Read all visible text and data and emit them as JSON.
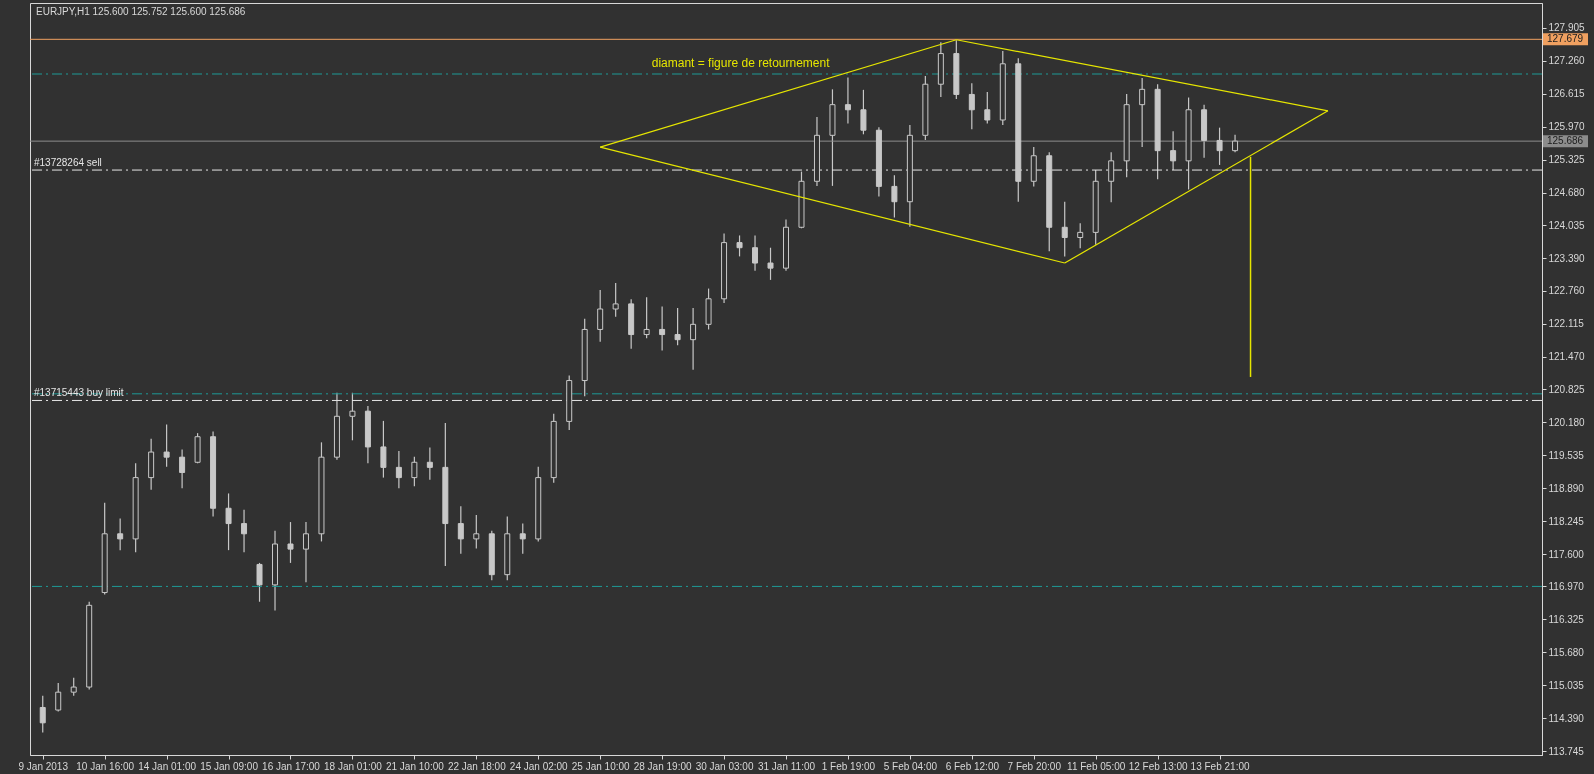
{
  "chart_data": {
    "type": "candlestick",
    "title": "EURJPY,H1  125.600 125.752 125.600 125.686",
    "color": "#c8c8c8",
    "categories": [
      "9 Jan 2013",
      null,
      null,
      null,
      "10 Jan 16:00",
      null,
      null,
      null,
      "14 Jan 01:00",
      null,
      null,
      null,
      "15 Jan 09:00",
      null,
      null,
      null,
      "16 Jan 17:00",
      null,
      null,
      null,
      "18 Jan 01:00",
      null,
      null,
      null,
      "21 Jan 10:00",
      null,
      null,
      null,
      "22 Jan 18:00",
      null,
      null,
      null,
      "24 Jan 02:00",
      null,
      null,
      null,
      "25 Jan 10:00",
      null,
      null,
      null,
      "28 Jan 19:00",
      null,
      null,
      null,
      "30 Jan 03:00",
      null,
      null,
      null,
      "31 Jan 11:00",
      null,
      null,
      null,
      "1 Feb 19:00",
      null,
      null,
      null,
      "5 Feb 04:00",
      null,
      null,
      null,
      "6 Feb 12:00",
      null,
      null,
      null,
      "7 Feb 20:00",
      null,
      null,
      null,
      "11 Feb 05:00",
      null,
      null,
      null,
      "12 Feb 13:00",
      null,
      null,
      null,
      "13 Feb 21:00",
      null,
      null,
      null,
      null,
      null,
      null,
      null,
      null,
      null,
      null,
      null,
      null,
      null,
      null,
      null,
      null,
      null,
      null,
      null,
      null
    ],
    "ohlc": [
      [
        114.6,
        114.83,
        114.11,
        114.3
      ],
      [
        114.55,
        115.08,
        114.52,
        114.9
      ],
      [
        114.9,
        115.18,
        114.83,
        115.0
      ],
      [
        115.0,
        116.67,
        114.95,
        116.6
      ],
      [
        116.85,
        118.61,
        116.81,
        118.0
      ],
      [
        118.0,
        118.3,
        117.68,
        117.9
      ],
      [
        117.9,
        119.38,
        117.64,
        119.1
      ],
      [
        119.1,
        119.86,
        118.86,
        119.6
      ],
      [
        119.6,
        120.14,
        119.31,
        119.5
      ],
      [
        119.5,
        119.65,
        118.89,
        119.2
      ],
      [
        119.4,
        119.97,
        119.38,
        119.9
      ],
      [
        119.9,
        120.0,
        118.34,
        118.5
      ],
      [
        118.5,
        118.79,
        117.68,
        118.2
      ],
      [
        118.2,
        118.47,
        117.64,
        118.0
      ],
      [
        117.4,
        117.43,
        116.67,
        117.0
      ],
      [
        117.0,
        118.06,
        116.5,
        117.8
      ],
      [
        117.8,
        118.23,
        117.43,
        117.7
      ],
      [
        117.7,
        118.23,
        117.05,
        118.0
      ],
      [
        118.0,
        119.79,
        117.85,
        119.5
      ],
      [
        119.5,
        120.76,
        119.45,
        120.3
      ],
      [
        120.3,
        120.76,
        119.83,
        120.4
      ],
      [
        120.4,
        120.5,
        119.38,
        119.7
      ],
      [
        119.7,
        120.21,
        119.1,
        119.3
      ],
      [
        119.3,
        119.62,
        118.89,
        119.1
      ],
      [
        119.1,
        119.51,
        118.93,
        119.4
      ],
      [
        119.4,
        119.69,
        119.06,
        119.3
      ],
      [
        119.3,
        120.17,
        117.37,
        118.2
      ],
      [
        118.2,
        118.54,
        117.61,
        117.9
      ],
      [
        117.9,
        118.37,
        117.71,
        118.0
      ],
      [
        118.0,
        118.06,
        117.09,
        117.2
      ],
      [
        117.2,
        118.34,
        117.09,
        118.0
      ],
      [
        118.0,
        118.2,
        117.61,
        117.9
      ],
      [
        117.9,
        119.31,
        117.85,
        119.1
      ],
      [
        119.1,
        120.35,
        119.0,
        120.2
      ],
      [
        120.2,
        121.1,
        120.03,
        121.0
      ],
      [
        121.0,
        122.21,
        120.69,
        122.0
      ],
      [
        122.0,
        122.77,
        121.76,
        122.4
      ],
      [
        122.4,
        122.91,
        122.25,
        122.5
      ],
      [
        122.5,
        122.59,
        121.62,
        121.9
      ],
      [
        121.9,
        122.63,
        121.83,
        122.0
      ],
      [
        122.0,
        122.45,
        121.59,
        121.9
      ],
      [
        121.9,
        122.42,
        121.69,
        121.8
      ],
      [
        121.8,
        122.42,
        121.21,
        122.1
      ],
      [
        122.1,
        122.8,
        122.0,
        122.6
      ],
      [
        122.6,
        123.88,
        122.52,
        123.7
      ],
      [
        123.7,
        123.84,
        123.43,
        123.6
      ],
      [
        123.6,
        123.84,
        123.15,
        123.3
      ],
      [
        123.3,
        123.6,
        122.97,
        123.2
      ],
      [
        123.2,
        124.15,
        123.15,
        124.0
      ],
      [
        124.0,
        125.09,
        123.98,
        124.9
      ],
      [
        124.9,
        126.16,
        124.81,
        125.8
      ],
      [
        125.8,
        126.7,
        124.81,
        126.4
      ],
      [
        126.4,
        126.93,
        126.03,
        126.3
      ],
      [
        126.3,
        126.69,
        125.82,
        125.9
      ],
      [
        125.9,
        125.96,
        124.6,
        124.8
      ],
      [
        124.8,
        125.02,
        124.19,
        124.5
      ],
      [
        124.5,
        126.0,
        124.01,
        125.8
      ],
      [
        125.8,
        126.96,
        125.71,
        126.8
      ],
      [
        126.8,
        127.62,
        126.55,
        127.4
      ],
      [
        127.4,
        127.66,
        126.51,
        126.6
      ],
      [
        126.6,
        126.82,
        125.92,
        126.3
      ],
      [
        126.3,
        126.65,
        126.03,
        126.1
      ],
      [
        126.1,
        127.45,
        126.0,
        127.2
      ],
      [
        127.2,
        127.31,
        124.5,
        124.9
      ],
      [
        124.9,
        125.57,
        124.8,
        125.4
      ],
      [
        125.4,
        125.47,
        123.53,
        124.0
      ],
      [
        124.0,
        124.5,
        123.43,
        123.8
      ],
      [
        123.8,
        124.08,
        123.59,
        123.9
      ],
      [
        123.9,
        125.12,
        123.66,
        124.9
      ],
      [
        124.9,
        125.47,
        124.49,
        125.3
      ],
      [
        125.3,
        126.61,
        124.98,
        126.4
      ],
      [
        126.4,
        126.92,
        125.57,
        126.7
      ],
      [
        126.7,
        126.8,
        124.94,
        125.5
      ],
      [
        125.5,
        125.88,
        125.12,
        125.3
      ],
      [
        125.3,
        126.54,
        124.74,
        126.3
      ],
      [
        126.3,
        126.4,
        125.36,
        125.7
      ],
      [
        125.7,
        125.95,
        125.22,
        125.5
      ],
      [
        125.5,
        125.81,
        125.47,
        125.686
      ],
      null,
      null,
      null,
      null,
      null,
      null,
      null,
      null,
      null,
      null,
      null,
      null,
      null,
      null,
      null,
      null,
      null,
      null,
      null
    ],
    "series": [
      {
        "type": "line",
        "color": "#e6e600",
        "values": [
          null,
          null,
          null,
          null,
          null,
          null,
          null,
          null,
          null,
          null,
          null,
          null,
          null,
          null,
          null,
          null,
          null,
          null,
          null,
          null,
          null,
          null,
          null,
          null,
          null,
          null,
          null,
          null,
          null,
          null,
          null,
          null,
          null,
          null,
          null,
          null,
          125.57,
          null,
          null,
          null,
          null,
          null,
          null,
          null,
          null,
          null,
          null,
          null,
          null,
          null,
          null,
          null,
          null,
          null,
          null,
          null,
          null,
          null,
          null,
          127.67,
          null,
          null,
          null,
          null,
          null,
          null,
          null,
          null,
          null,
          null,
          null,
          null,
          null,
          null,
          null,
          null,
          null,
          null,
          null,
          null,
          null,
          null,
          null,
          null,
          null,
          null,
          null,
          null,
          null,
          null,
          null,
          null,
          null,
          null,
          null,
          null,
          null
        ]
      },
      {
        "type": "line",
        "color": "#e6e600",
        "values": [
          null,
          null,
          null,
          null,
          null,
          null,
          null,
          null,
          null,
          null,
          null,
          null,
          null,
          null,
          null,
          null,
          null,
          null,
          null,
          null,
          null,
          null,
          null,
          null,
          null,
          null,
          null,
          null,
          null,
          null,
          null,
          null,
          null,
          null,
          null,
          null,
          null,
          null,
          null,
          null,
          null,
          null,
          null,
          null,
          null,
          null,
          null,
          null,
          null,
          null,
          null,
          null,
          null,
          null,
          null,
          null,
          null,
          null,
          null,
          127.67,
          null,
          null,
          null,
          null,
          null,
          null,
          null,
          null,
          null,
          null,
          null,
          null,
          null,
          null,
          null,
          null,
          null,
          null,
          null,
          null,
          null,
          null,
          null,
          126.28,
          null,
          null,
          null,
          null,
          null,
          null,
          null,
          null,
          null,
          null,
          null,
          null,
          null
        ]
      },
      {
        "type": "line",
        "color": "#e6e600",
        "values": [
          null,
          null,
          null,
          null,
          null,
          null,
          null,
          null,
          null,
          null,
          null,
          null,
          null,
          null,
          null,
          null,
          null,
          null,
          null,
          null,
          null,
          null,
          null,
          null,
          null,
          null,
          null,
          null,
          null,
          null,
          null,
          null,
          null,
          null,
          null,
          null,
          null,
          null,
          null,
          null,
          null,
          null,
          null,
          null,
          null,
          null,
          null,
          null,
          null,
          null,
          null,
          null,
          null,
          null,
          null,
          null,
          null,
          null,
          null,
          null,
          null,
          null,
          null,
          null,
          null,
          null,
          123.3,
          null,
          null,
          null,
          null,
          null,
          null,
          null,
          null,
          null,
          null,
          null,
          null,
          null,
          null,
          null,
          null,
          126.28,
          null,
          null,
          null,
          null,
          null,
          null,
          null,
          null,
          null,
          null,
          null,
          null,
          null
        ]
      },
      {
        "type": "line",
        "color": "#e6e600",
        "values": [
          null,
          null,
          null,
          null,
          null,
          null,
          null,
          null,
          null,
          null,
          null,
          null,
          null,
          null,
          null,
          null,
          null,
          null,
          null,
          null,
          null,
          null,
          null,
          null,
          null,
          null,
          null,
          null,
          null,
          null,
          null,
          null,
          null,
          null,
          null,
          null,
          125.57,
          null,
          null,
          null,
          null,
          null,
          null,
          null,
          null,
          null,
          null,
          null,
          null,
          null,
          null,
          null,
          null,
          null,
          null,
          null,
          null,
          null,
          null,
          null,
          null,
          null,
          null,
          null,
          null,
          null,
          123.3,
          null,
          null,
          null,
          null,
          null,
          null,
          null,
          null,
          null,
          null,
          null,
          null,
          null,
          null,
          null,
          null,
          null,
          null,
          null,
          null,
          null,
          null,
          null,
          null,
          null,
          null,
          null,
          null,
          null,
          null
        ]
      },
      {
        "type": "bar",
        "color": "#e6e600",
        "values": [
          null,
          null,
          null,
          null,
          null,
          null,
          null,
          null,
          null,
          null,
          null,
          null,
          null,
          null,
          null,
          null,
          null,
          null,
          null,
          null,
          null,
          null,
          null,
          null,
          null,
          null,
          null,
          null,
          null,
          null,
          null,
          null,
          null,
          null,
          null,
          null,
          null,
          null,
          null,
          null,
          null,
          null,
          null,
          null,
          null,
          null,
          null,
          null,
          null,
          null,
          null,
          null,
          null,
          null,
          null,
          null,
          null,
          null,
          null,
          null,
          null,
          null,
          null,
          null,
          null,
          null,
          null,
          null,
          null,
          null,
          null,
          null,
          null,
          null,
          null,
          null,
          null,
          null,
          4.31,
          null,
          null,
          null,
          null,
          null,
          null,
          null,
          null,
          null,
          null,
          null,
          null,
          null,
          null,
          null,
          null,
          null,
          null
        ],
        "base": [
          null,
          null,
          null,
          null,
          null,
          null,
          null,
          null,
          null,
          null,
          null,
          null,
          null,
          null,
          null,
          null,
          null,
          null,
          null,
          null,
          null,
          null,
          null,
          null,
          null,
          null,
          null,
          null,
          null,
          null,
          null,
          null,
          null,
          null,
          null,
          null,
          null,
          null,
          null,
          null,
          null,
          null,
          null,
          null,
          null,
          null,
          null,
          null,
          null,
          null,
          null,
          null,
          null,
          null,
          null,
          null,
          null,
          null,
          null,
          null,
          null,
          null,
          null,
          null,
          null,
          null,
          null,
          null,
          null,
          null,
          null,
          null,
          null,
          null,
          null,
          null,
          null,
          null,
          121.07,
          null,
          null,
          null,
          null,
          null,
          null,
          null,
          null,
          null,
          null,
          null,
          null,
          null,
          null,
          null,
          null,
          null,
          null
        ]
      }
    ],
    "annotations": [
      "diamant = figure de retournement"
    ],
    "ref_lines": [
      {
        "axis": "y",
        "value": 127.679,
        "label": "127.679",
        "color": "#f0a060",
        "line_style": "solid"
      },
      {
        "axis": "y",
        "value": 125.686,
        "label": "125.686",
        "color": "#8c8c8c",
        "line_style": "solid"
      },
      {
        "axis": "y",
        "value": 127.0,
        "color": "#1e9a96",
        "line_style": "dashed"
      },
      {
        "axis": "y",
        "value": 125.12,
        "label": "#13728264 sell",
        "color": "#e6e6e6",
        "line_style": "dashed"
      },
      {
        "axis": "y",
        "value": 120.74,
        "color": "#1e9a96",
        "line_style": "dashed"
      },
      {
        "axis": "y",
        "value": 120.61,
        "label": "#13715443 buy limit",
        "color": "#e6e6e6",
        "line_style": "dashed"
      },
      {
        "axis": "y",
        "value": 116.97,
        "color": "#1e9a96",
        "line_style": "dashed"
      }
    ],
    "ylim": [
      113.67,
      128.39
    ],
    "yticks": [
      {
        "value": 127.905,
        "label": "127.905"
      },
      {
        "value": 127.26,
        "label": "127.260"
      },
      {
        "value": 126.615,
        "label": "126.615"
      },
      {
        "value": 125.97,
        "label": "125.970"
      },
      {
        "value": 125.325,
        "label": "125.325"
      },
      {
        "value": 124.68,
        "label": "124.680"
      },
      {
        "value": 124.035,
        "label": "124.035"
      },
      {
        "value": 123.39,
        "label": "123.390"
      },
      {
        "value": 122.76,
        "label": "122.760"
      },
      {
        "value": 122.115,
        "label": "122.115"
      },
      {
        "value": 121.47,
        "label": "121.470"
      },
      {
        "value": 120.825,
        "label": "120.825"
      },
      {
        "value": 120.18,
        "label": "120.180"
      },
      {
        "value": 119.535,
        "label": "119.535"
      },
      {
        "value": 118.89,
        "label": "118.890"
      },
      {
        "value": 118.245,
        "label": "118.245"
      },
      {
        "value": 117.6,
        "label": "117.600"
      },
      {
        "value": 116.97,
        "label": "116.970"
      },
      {
        "value": 116.325,
        "label": "116.325"
      },
      {
        "value": 115.68,
        "label": "115.680"
      },
      {
        "value": 115.035,
        "label": "115.035"
      },
      {
        "value": 114.39,
        "label": "114.390"
      },
      {
        "value": 113.745,
        "label": "113.745"
      }
    ]
  }
}
